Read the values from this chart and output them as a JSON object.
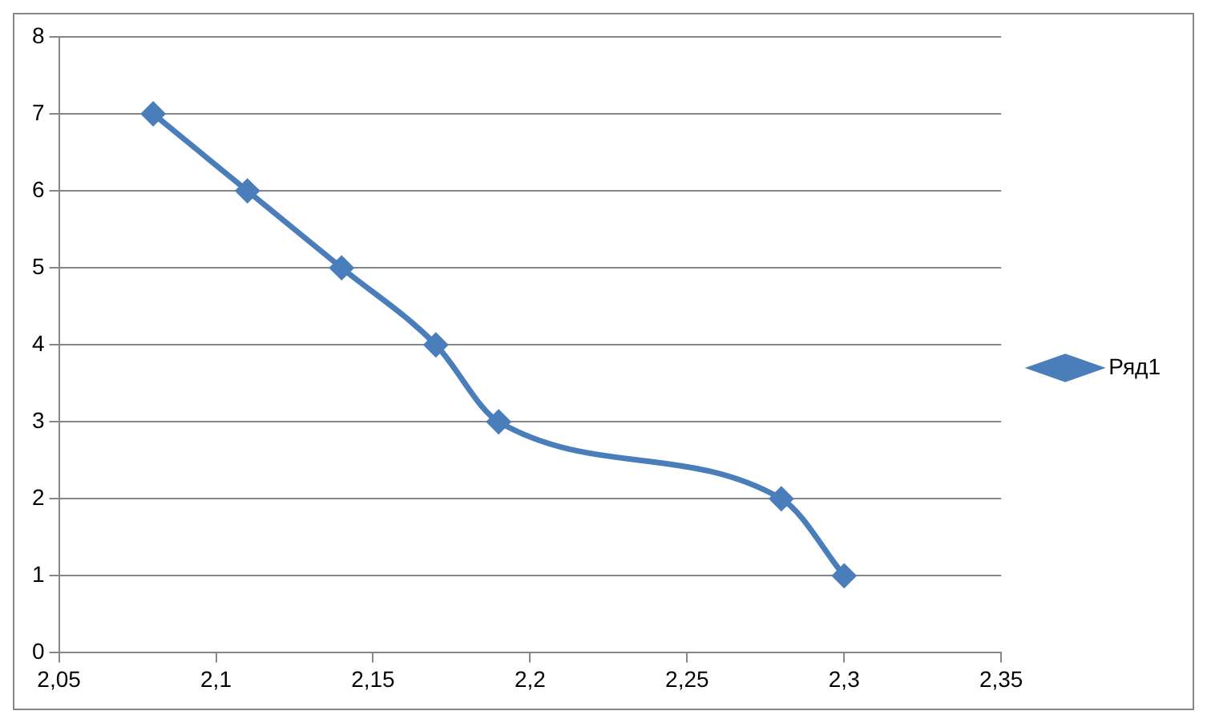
{
  "chart_data": {
    "type": "line",
    "x": [
      2.08,
      2.11,
      2.14,
      2.17,
      2.19,
      2.28,
      2.3
    ],
    "series": [
      {
        "name": "Ряд1",
        "color": "#4a7ebb",
        "values": [
          7,
          6,
          5,
          4,
          3,
          2,
          1
        ]
      }
    ],
    "xlim": [
      2.05,
      2.35
    ],
    "xticks": [
      {
        "value": 2.05,
        "label": "2,05"
      },
      {
        "value": 2.1,
        "label": "2,1"
      },
      {
        "value": 2.15,
        "label": "2,15"
      },
      {
        "value": 2.2,
        "label": "2,2"
      },
      {
        "value": 2.25,
        "label": "2,25"
      },
      {
        "value": 2.3,
        "label": "2,3"
      },
      {
        "value": 2.35,
        "label": "2,35"
      }
    ],
    "ylim": [
      0,
      8
    ],
    "yticks": [
      0,
      1,
      2,
      3,
      4,
      5,
      6,
      7,
      8
    ],
    "grid": "y",
    "legend": "right",
    "marker": "diamond",
    "line_style": "solid"
  }
}
